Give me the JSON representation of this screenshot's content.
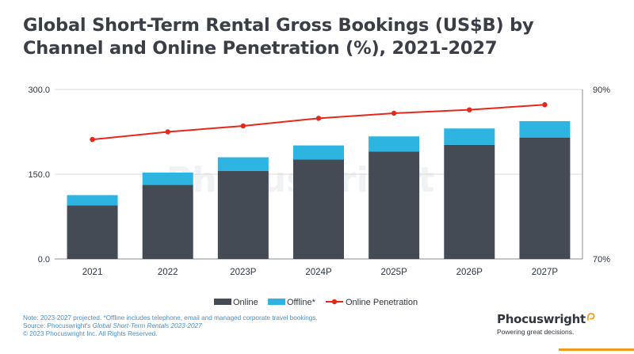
{
  "title": "Global Short-Term Rental Gross Bookings (US$B) by Channel and Online Penetration (%), 2021-2027",
  "watermark": "Phocuswright",
  "chart_data": {
    "type": "bar",
    "stacked": true,
    "categories": [
      "2021",
      "2022",
      "2023P",
      "2024P",
      "2025P",
      "2026P",
      "2027P"
    ],
    "series": [
      {
        "name": "Online",
        "color": "#454b54",
        "values": [
          95,
          131,
          156,
          176,
          190,
          202,
          215
        ]
      },
      {
        "name": "Offline*",
        "color": "#2eb4e0",
        "values": [
          18,
          22,
          24,
          25,
          27,
          29,
          29
        ]
      }
    ],
    "line_series": {
      "name": "Online Penetration",
      "color": "#e8271c",
      "axis": "right",
      "values": [
        84.1,
        85.0,
        85.7,
        86.6,
        87.2,
        87.6,
        88.2
      ]
    },
    "y_left": {
      "min": 0,
      "max": 300,
      "ticks": [
        "0.0",
        "150.0",
        "300.0"
      ]
    },
    "y_right": {
      "min": 70,
      "max": 90,
      "ticks": [
        "70%",
        "90%"
      ]
    },
    "grid": true,
    "legend": "bottom"
  },
  "notes": {
    "line1": "Note: 2023-2027 projected. *Offline includes telephone, email and managed corporate travel bookings.",
    "line2_prefix": "Source: Phocuswright's ",
    "line2_italic": "Global Short-Term Rentals 2023-2027",
    "line3": "© 2023 Phocuswright Inc. All Rights Reserved."
  },
  "brand": {
    "name": "Phocuswright",
    "tagline": "Powering great decisions.",
    "accent_color": "#f29a1f"
  }
}
